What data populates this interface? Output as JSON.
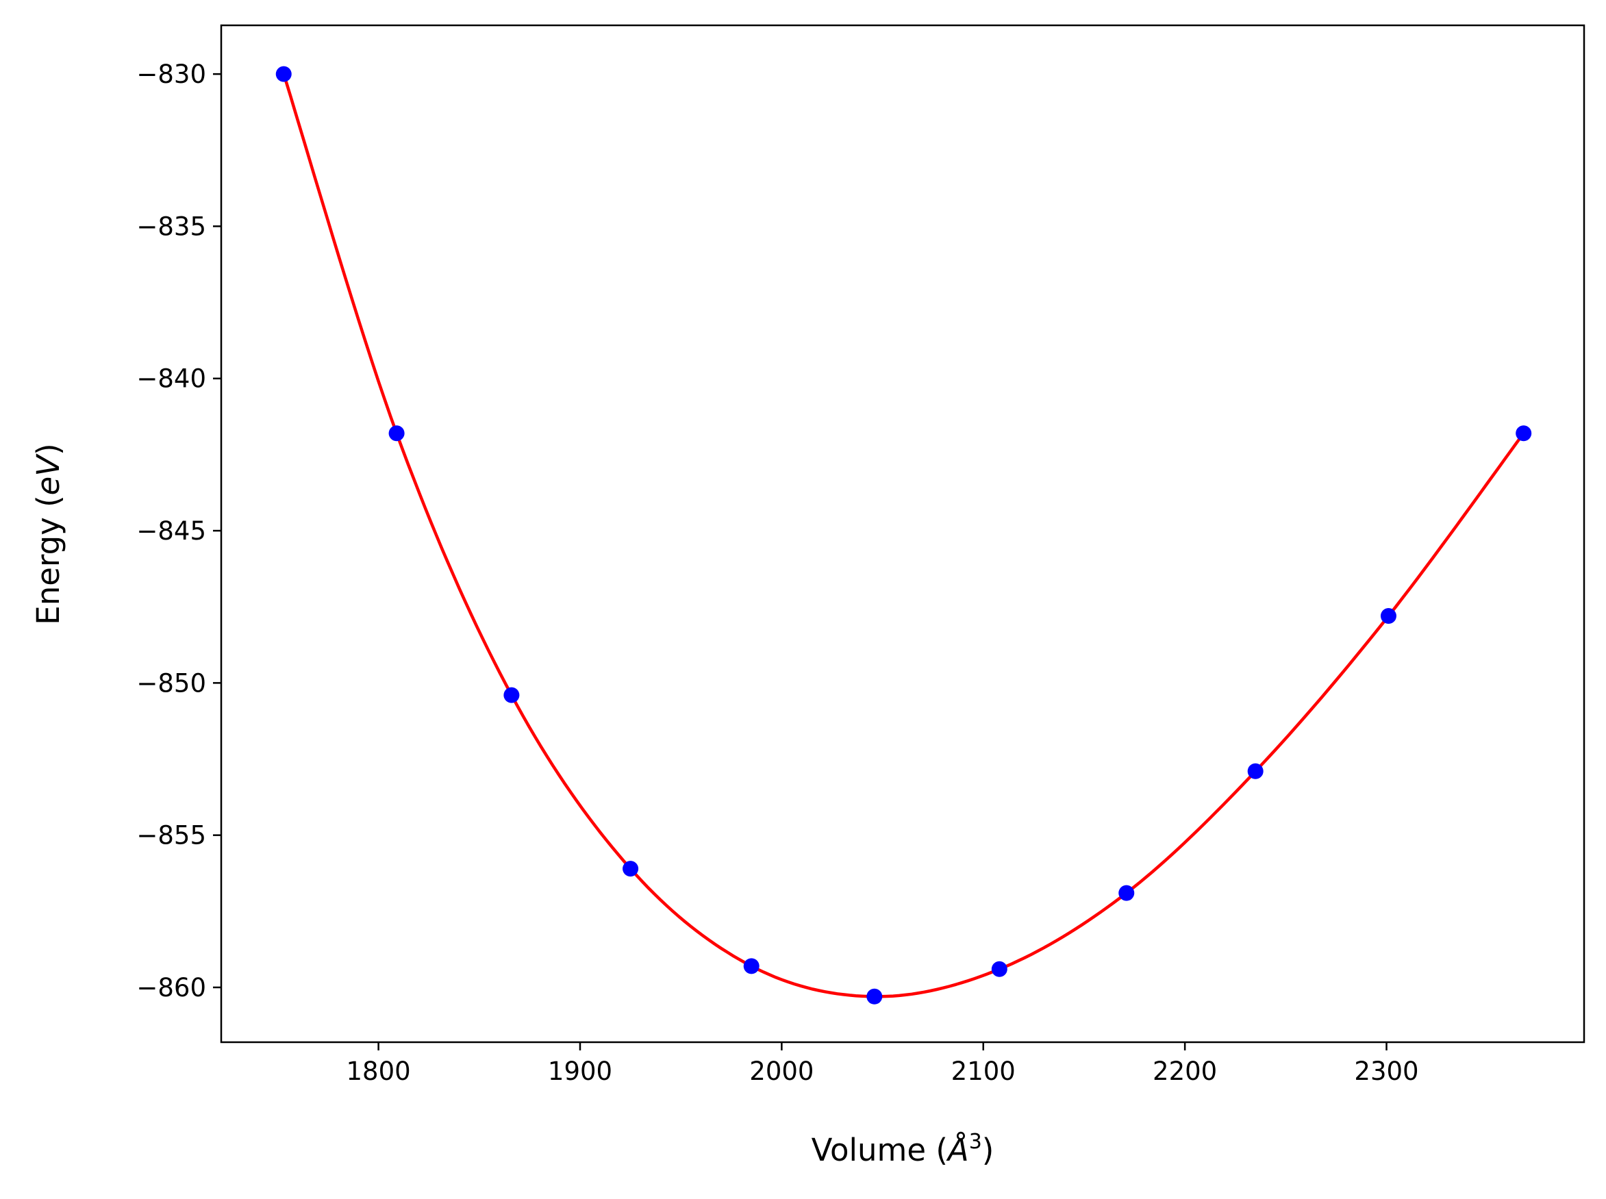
{
  "chart_data": {
    "type": "scatter",
    "title": "",
    "xlabel": "Volume (",
    "xlabel_symbol": "Å",
    "xlabel_power": "3",
    "xlabel_close": ")",
    "ylabel": "Energy (",
    "ylabel_unit": "eV",
    "ylabel_close": ")",
    "xlim": [
      1722,
      2398
    ],
    "ylim": [
      -861.8,
      -828.4
    ],
    "xticks": [
      1800,
      1900,
      2000,
      2100,
      2200,
      2300
    ],
    "xtick_labels": [
      "1800",
      "1900",
      "2000",
      "2100",
      "2200",
      "2300"
    ],
    "yticks": [
      -830,
      -835,
      -840,
      -845,
      -850,
      -855,
      -860
    ],
    "ytick_labels": [
      "−830",
      "−835",
      "−840",
      "−845",
      "−850",
      "−855",
      "−860"
    ],
    "grid": false,
    "legend": "none",
    "series": [
      {
        "kind": "points",
        "color": "#0000ff",
        "x": [
          1753,
          1809,
          1866,
          1925,
          1985,
          2046,
          2108,
          2171,
          2235,
          2301,
          2368
        ],
        "y": [
          -830.0,
          -841.8,
          -850.4,
          -856.1,
          -859.3,
          -860.3,
          -859.4,
          -856.9,
          -852.9,
          -847.8,
          -841.8
        ]
      },
      {
        "kind": "fit-curve",
        "color": "#ff0000",
        "x_range": [
          1753,
          2368
        ]
      }
    ]
  }
}
